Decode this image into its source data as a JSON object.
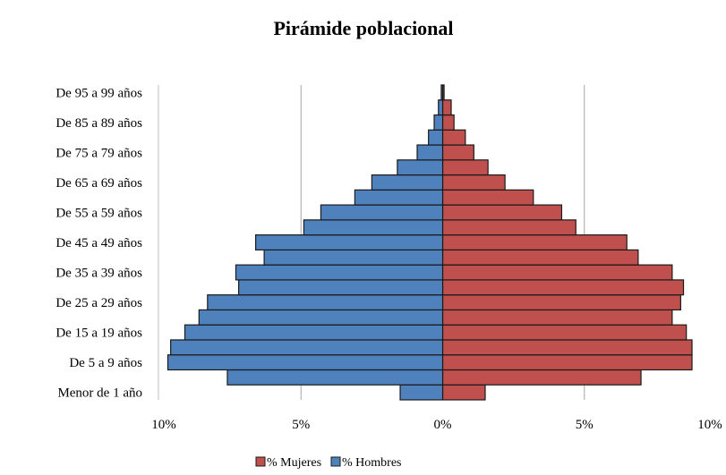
{
  "chart_data": {
    "type": "bar",
    "orientation": "horizontal",
    "title": "Pirámide poblacional",
    "categories": [
      "Menor de 1 año",
      "",
      "De 5 a 9 años",
      "",
      "De 15 a 19 años",
      "",
      "De 25 a 29 años",
      "",
      "De 35 a 39 años",
      "",
      "De 45 a 49 años",
      "",
      "De 55 a 59 años",
      "",
      "De 65 a 69 años",
      "",
      "De 75 a 79 años",
      "",
      "De 85 a 89 años",
      "",
      "De 95 a 99 años"
    ],
    "series": [
      {
        "name": "% Mujeres",
        "color": "#c0504d",
        "side": "right",
        "values": [
          1.5,
          7.0,
          8.8,
          8.8,
          8.6,
          8.1,
          8.4,
          8.5,
          8.1,
          6.9,
          6.5,
          4.7,
          4.2,
          3.2,
          2.2,
          1.6,
          1.1,
          0.8,
          0.4,
          0.3,
          0.05
        ]
      },
      {
        "name": "% Hombres",
        "color": "#4f81bd",
        "side": "left",
        "values": [
          1.5,
          7.6,
          9.7,
          9.6,
          9.1,
          8.6,
          8.3,
          7.2,
          7.3,
          6.3,
          6.6,
          4.9,
          4.3,
          3.1,
          2.5,
          1.6,
          0.9,
          0.5,
          0.3,
          0.15,
          0.05
        ]
      }
    ],
    "x_tick_labels": [
      "10%",
      "5%",
      "0%",
      "5%",
      "10%"
    ],
    "x_tick_values": [
      -10,
      -5,
      0,
      5,
      10
    ],
    "xlim": [
      -10,
      10
    ],
    "grid": true,
    "legend_position": "bottom"
  }
}
